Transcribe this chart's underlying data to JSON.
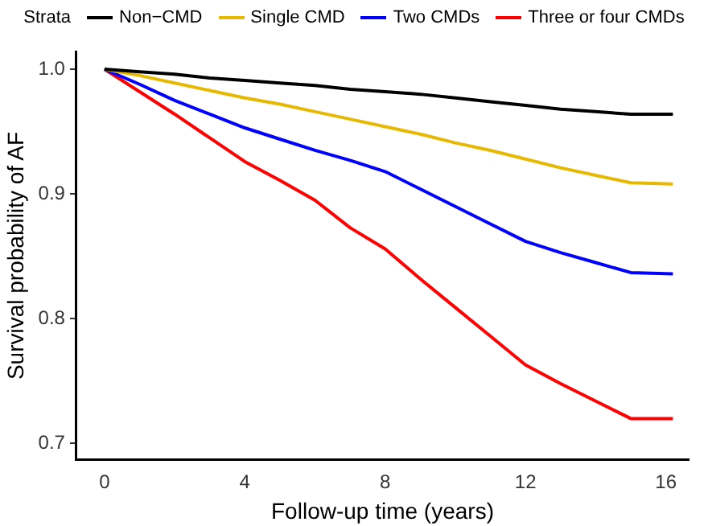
{
  "chart_data": {
    "type": "line",
    "xlabel": "Follow-up time (years)",
    "ylabel": "Survival probability of AF",
    "legend_title": "Strata",
    "legend": "top",
    "grid": false,
    "marker": "none",
    "line_style": "solid",
    "xlim": [
      -0.8,
      16.65
    ],
    "xticks": [
      0,
      4,
      8,
      12,
      16
    ],
    "ylim": [
      0.687,
      1.014
    ],
    "yticks": [
      {
        "value": 0.7,
        "label": "0.7"
      },
      {
        "value": 0.8,
        "label": "0.8"
      },
      {
        "value": 0.9,
        "label": "0.9"
      },
      {
        "value": 1.0,
        "label": "1.0"
      }
    ],
    "x": [
      0,
      1,
      2,
      3,
      4,
      5,
      6,
      7,
      8,
      9,
      10,
      11,
      12,
      13,
      14,
      15,
      16.2
    ],
    "series": [
      {
        "name": "Non−CMD",
        "color": "#000000",
        "values": [
          1.0,
          0.998,
          0.996,
          0.993,
          0.991,
          0.989,
          0.987,
          0.984,
          0.982,
          0.98,
          0.977,
          0.974,
          0.971,
          0.968,
          0.966,
          0.964,
          0.964
        ]
      },
      {
        "name": "Single CMD",
        "color": "#e7b800",
        "values": [
          1.0,
          0.995,
          0.989,
          0.983,
          0.977,
          0.972,
          0.966,
          0.96,
          0.954,
          0.948,
          0.941,
          0.935,
          0.928,
          0.921,
          0.915,
          0.909,
          0.908
        ]
      },
      {
        "name": "Two CMDs",
        "color": "#0000ff",
        "values": [
          1.0,
          0.988,
          0.975,
          0.964,
          0.953,
          0.944,
          0.935,
          0.927,
          0.918,
          0.904,
          0.89,
          0.876,
          0.862,
          0.853,
          0.845,
          0.837,
          0.836
        ]
      },
      {
        "name": "Three or four CMDs",
        "color": "#ff0000",
        "values": [
          1.0,
          0.982,
          0.964,
          0.945,
          0.926,
          0.911,
          0.895,
          0.873,
          0.856,
          0.832,
          0.809,
          0.786,
          0.763,
          0.748,
          0.734,
          0.72,
          0.72
        ]
      }
    ]
  }
}
